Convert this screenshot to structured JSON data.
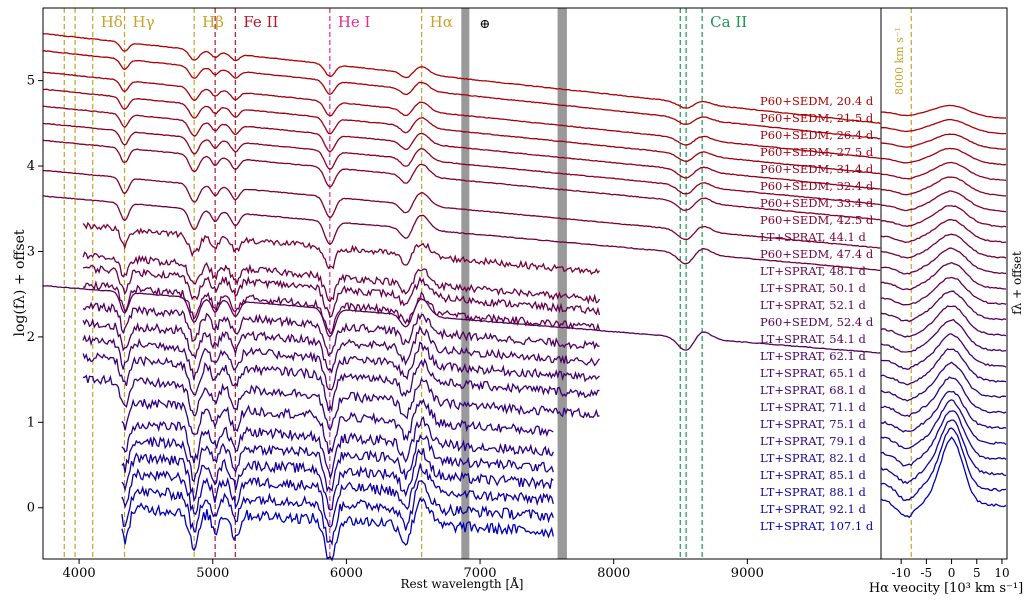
{
  "chart_data": [
    {
      "type": "line",
      "panel": "main",
      "xlabel": "Rest wavelength [Å]",
      "ylabel": "log(fλ) + offset",
      "xlim": [
        3730,
        10000
      ],
      "ylim": [
        -0.6,
        5.85
      ],
      "x_ticks": [
        4000,
        5000,
        6000,
        7000,
        8000,
        9000
      ],
      "y_ticks": [
        0,
        1,
        2,
        3,
        4,
        5
      ],
      "line_labels": [
        {
          "text": "Hδ",
          "x": 4102,
          "color": "#c9a227",
          "lines": [
            3889,
            3970,
            4102
          ]
        },
        {
          "text": "Hγ",
          "x": 4340,
          "color": "#c9a227",
          "lines": [
            4340
          ]
        },
        {
          "text": "Hβ",
          "x": 4861,
          "color": "#c9a227",
          "lines": [
            4861
          ]
        },
        {
          "text": "Fe II",
          "x": 5169,
          "color": "#b2182b",
          "lines": [
            5018,
            5169
          ]
        },
        {
          "text": "He I",
          "x": 5876,
          "color": "#e7298a",
          "lines": [
            5876
          ]
        },
        {
          "text": "Hα",
          "x": 6563,
          "color": "#c9a227",
          "lines": [
            6563
          ]
        },
        {
          "text": "Ca II",
          "x": 8662,
          "color": "#1a9850",
          "lines": [
            8498,
            8542,
            8662
          ]
        }
      ],
      "telluric_bands": [
        {
          "label": "⊕",
          "x0": 6860,
          "x1": 6920
        },
        {
          "label": "",
          "x0": 7580,
          "x1": 7650
        }
      ],
      "series": [
        {
          "name": "P60+SEDM, 20.4 d",
          "instrument": "P60+SEDM",
          "offset": 5.55,
          "xmin": 3730,
          "xmax": 10000,
          "color": "#b30000"
        },
        {
          "name": "P60+SEDM, 21.5 d",
          "instrument": "P60+SEDM",
          "offset": 5.35,
          "xmin": 3730,
          "xmax": 10000,
          "color": "#ac0006"
        },
        {
          "name": "P60+SEDM, 26.4 d",
          "instrument": "P60+SEDM",
          "offset": 5.1,
          "xmin": 3730,
          "xmax": 10000,
          "color": "#a5000d"
        },
        {
          "name": "P60+SEDM, 27.5 d",
          "instrument": "P60+SEDM",
          "offset": 4.9,
          "xmin": 3730,
          "xmax": 10000,
          "color": "#9e0014"
        },
        {
          "name": "P60+SEDM, 31.4 d",
          "instrument": "P60+SEDM",
          "offset": 4.7,
          "xmin": 3730,
          "xmax": 10000,
          "color": "#97001b"
        },
        {
          "name": "P60+SEDM, 32.4 d",
          "instrument": "P60+SEDM",
          "offset": 4.5,
          "xmin": 3730,
          "xmax": 10000,
          "color": "#900022"
        },
        {
          "name": "P60+SEDM, 33.4 d",
          "instrument": "P60+SEDM",
          "offset": 4.3,
          "xmin": 3730,
          "xmax": 10000,
          "color": "#890029"
        },
        {
          "name": "P60+SEDM, 42.5 d",
          "instrument": "P60+SEDM",
          "offset": 3.95,
          "xmin": 3730,
          "xmax": 10000,
          "color": "#820030"
        },
        {
          "name": "LT+SPRAT, 44.1 d",
          "instrument": "LT+SPRAT",
          "offset": 3.35,
          "xmin": 4030,
          "xmax": 7900,
          "color": "#7b0037"
        },
        {
          "name": "P60+SEDM, 47.4 d",
          "instrument": "P60+SEDM",
          "offset": 3.65,
          "xmin": 3730,
          "xmax": 10000,
          "color": "#74003e"
        },
        {
          "name": "LT+SPRAT, 48.1 d",
          "instrument": "LT+SPRAT",
          "offset": 3.0,
          "xmin": 4030,
          "xmax": 7900,
          "color": "#6d0045"
        },
        {
          "name": "LT+SPRAT, 50.1 d",
          "instrument": "LT+SPRAT",
          "offset": 2.85,
          "xmin": 4030,
          "xmax": 7900,
          "color": "#66004c"
        },
        {
          "name": "LT+SPRAT, 52.1 d",
          "instrument": "LT+SPRAT",
          "offset": 2.65,
          "xmin": 4030,
          "xmax": 7900,
          "color": "#5f0053"
        },
        {
          "name": "P60+SEDM, 52.4 d",
          "instrument": "P60+SEDM",
          "offset": 2.6,
          "xmin": 3730,
          "xmax": 10000,
          "color": "#58005a"
        },
        {
          "name": "LT+SPRAT, 54.1 d",
          "instrument": "LT+SPRAT",
          "offset": 2.4,
          "xmin": 4030,
          "xmax": 7900,
          "color": "#510061"
        },
        {
          "name": "LT+SPRAT, 62.1 d",
          "instrument": "LT+SPRAT",
          "offset": 2.2,
          "xmin": 4030,
          "xmax": 7900,
          "color": "#4a0068"
        },
        {
          "name": "LT+SPRAT, 65.1 d",
          "instrument": "LT+SPRAT",
          "offset": 2.0,
          "xmin": 4030,
          "xmax": 7900,
          "color": "#43006f"
        },
        {
          "name": "LT+SPRAT, 68.1 d",
          "instrument": "LT+SPRAT",
          "offset": 1.8,
          "xmin": 4030,
          "xmax": 7900,
          "color": "#3c0076"
        },
        {
          "name": "LT+SPRAT, 71.1 d",
          "instrument": "LT+SPRAT",
          "offset": 1.55,
          "xmin": 4030,
          "xmax": 7900,
          "color": "#35007d"
        },
        {
          "name": "LT+SPRAT, 75.1 d",
          "instrument": "LT+SPRAT",
          "offset": 1.3,
          "xmin": 4320,
          "xmax": 7550,
          "color": "#2e0084"
        },
        {
          "name": "LT+SPRAT, 79.1 d",
          "instrument": "LT+SPRAT",
          "offset": 1.05,
          "xmin": 4320,
          "xmax": 7550,
          "color": "#27008b"
        },
        {
          "name": "LT+SPRAT, 82.1 d",
          "instrument": "LT+SPRAT",
          "offset": 0.85,
          "xmin": 4320,
          "xmax": 7550,
          "color": "#200092"
        },
        {
          "name": "LT+SPRAT, 85.1 d",
          "instrument": "LT+SPRAT",
          "offset": 0.65,
          "xmin": 4320,
          "xmax": 7550,
          "color": "#190099"
        },
        {
          "name": "LT+SPRAT, 88.1 d",
          "instrument": "LT+SPRAT",
          "offset": 0.45,
          "xmin": 4320,
          "xmax": 7550,
          "color": "#1200a0"
        },
        {
          "name": "LT+SPRAT, 92.1 d",
          "instrument": "LT+SPRAT",
          "offset": 0.25,
          "xmin": 4320,
          "xmax": 7550,
          "color": "#0b00a7"
        },
        {
          "name": "LT+SPRAT, 107.1 d",
          "instrument": "LT+SPRAT",
          "offset": 0.05,
          "xmin": 4320,
          "xmax": 7550,
          "color": "#0000b8"
        }
      ]
    },
    {
      "type": "line",
      "panel": "halpha",
      "xlabel": "Hα veocity [10³ km s⁻¹]",
      "ylabel": "fλ + offset",
      "xlim": [
        -14,
        11
      ],
      "x_ticks": [
        -10,
        -5,
        0,
        5,
        10
      ],
      "marker": {
        "x": -8,
        "label": "8000 km s⁻¹",
        "color": "#c9a227"
      },
      "n_series": 26
    }
  ]
}
